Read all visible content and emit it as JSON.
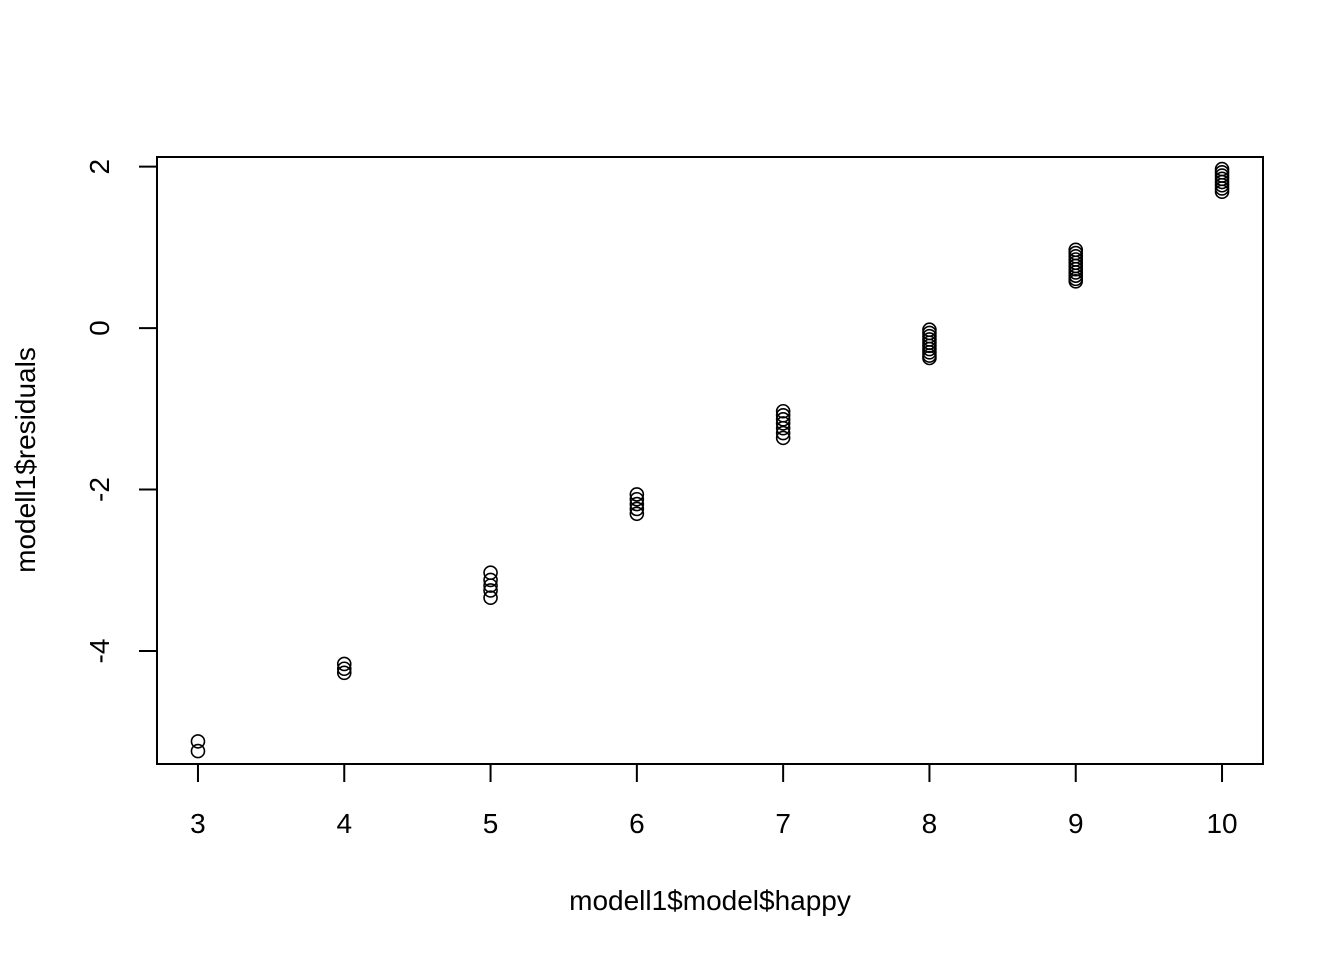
{
  "chart_data": {
    "type": "scatter",
    "title": "",
    "xlabel": "modell1$model$happy",
    "ylabel": "modell1$residuals",
    "xlim": [
      2.72,
      10.28
    ],
    "ylim": [
      -5.4,
      2.12
    ],
    "x_ticks": [
      3,
      4,
      5,
      6,
      7,
      8,
      9,
      10
    ],
    "y_ticks": [
      -4,
      -2,
      0,
      2
    ],
    "x_tick_labels": [
      "3",
      "4",
      "5",
      "6",
      "7",
      "8",
      "9",
      "10"
    ],
    "y_tick_labels": [
      "-4",
      "-2",
      "0",
      "2"
    ],
    "grid": false,
    "marker": "open-circle",
    "series": [
      {
        "points": [
          [
            3,
            -5.12
          ],
          [
            3,
            -5.24
          ],
          [
            4,
            -4.16
          ],
          [
            4,
            -4.22
          ],
          [
            4,
            -4.27
          ],
          [
            5,
            -3.03
          ],
          [
            5,
            -3.12
          ],
          [
            5,
            -3.19
          ],
          [
            5,
            -3.25
          ],
          [
            5,
            -3.34
          ],
          [
            6,
            -2.06
          ],
          [
            6,
            -2.12
          ],
          [
            6,
            -2.18
          ],
          [
            6,
            -2.24
          ],
          [
            6,
            -2.3
          ],
          [
            7,
            -1.03
          ],
          [
            7,
            -1.08
          ],
          [
            7,
            -1.13
          ],
          [
            7,
            -1.18
          ],
          [
            7,
            -1.24
          ],
          [
            7,
            -1.3
          ],
          [
            7,
            -1.36
          ],
          [
            8,
            -0.02
          ],
          [
            8,
            -0.06
          ],
          [
            8,
            -0.1
          ],
          [
            8,
            -0.14
          ],
          [
            8,
            -0.18
          ],
          [
            8,
            -0.22
          ],
          [
            8,
            -0.26
          ],
          [
            8,
            -0.3
          ],
          [
            8,
            -0.34
          ],
          [
            8,
            -0.37
          ],
          [
            9,
            0.97
          ],
          [
            9,
            0.93
          ],
          [
            9,
            0.89
          ],
          [
            9,
            0.85
          ],
          [
            9,
            0.81
          ],
          [
            9,
            0.77
          ],
          [
            9,
            0.73
          ],
          [
            9,
            0.69
          ],
          [
            9,
            0.65
          ],
          [
            9,
            0.61
          ],
          [
            9,
            0.58
          ],
          [
            10,
            1.97
          ],
          [
            10,
            1.93
          ],
          [
            10,
            1.89
          ],
          [
            10,
            1.85
          ],
          [
            10,
            1.81
          ],
          [
            10,
            1.77
          ],
          [
            10,
            1.73
          ],
          [
            10,
            1.69
          ]
        ]
      }
    ]
  }
}
